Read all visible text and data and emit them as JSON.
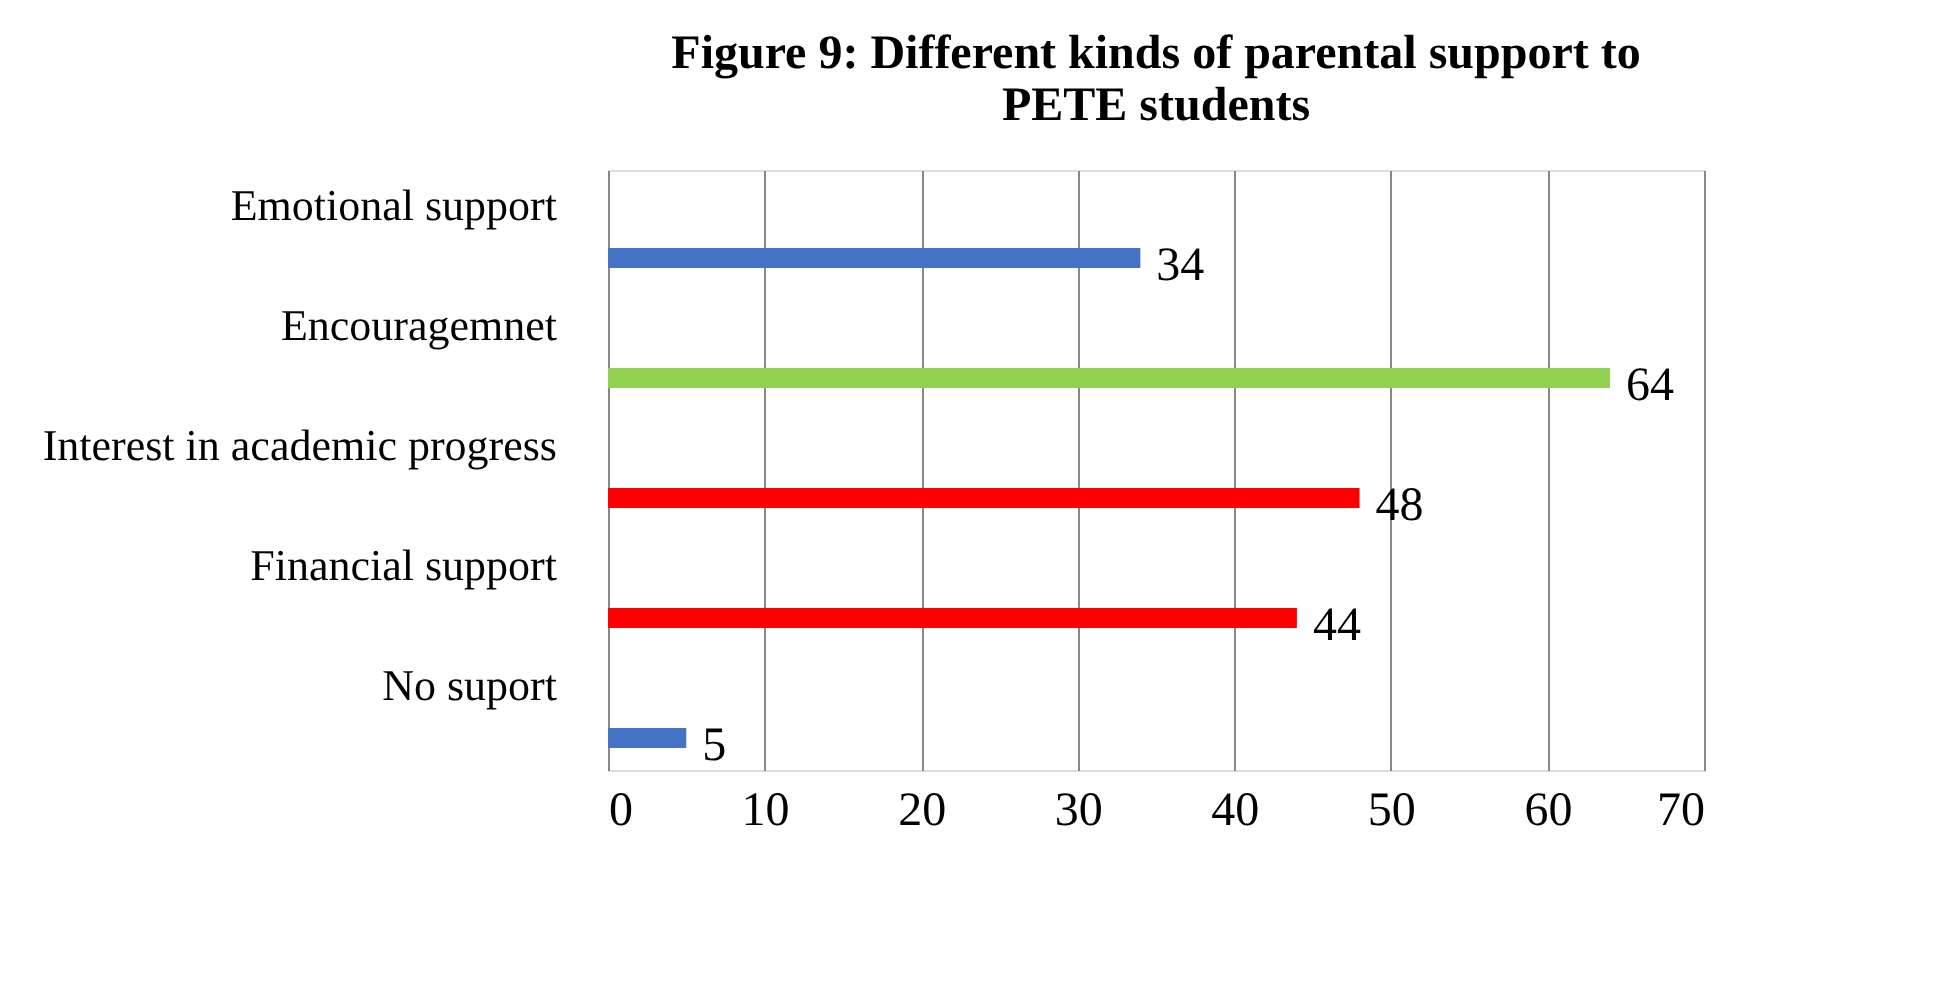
{
  "chart_data": {
    "type": "bar",
    "orientation": "horizontal",
    "title": "Figure 9: Different kinds of parental support to PETE students",
    "categories": [
      "Emotional support",
      "Encouragemnet",
      "Interest in academic progress",
      "Financial support",
      "No suport"
    ],
    "values": [
      34,
      64,
      48,
      44,
      5
    ],
    "colors": [
      "#4472c4",
      "#92d050",
      "#ff0000",
      "#ff0000",
      "#4472c4"
    ],
    "xlim": [
      0,
      70
    ],
    "xticks": [
      0,
      10,
      20,
      30,
      40,
      50,
      60,
      70
    ],
    "grid": "x",
    "data_labels": true
  }
}
